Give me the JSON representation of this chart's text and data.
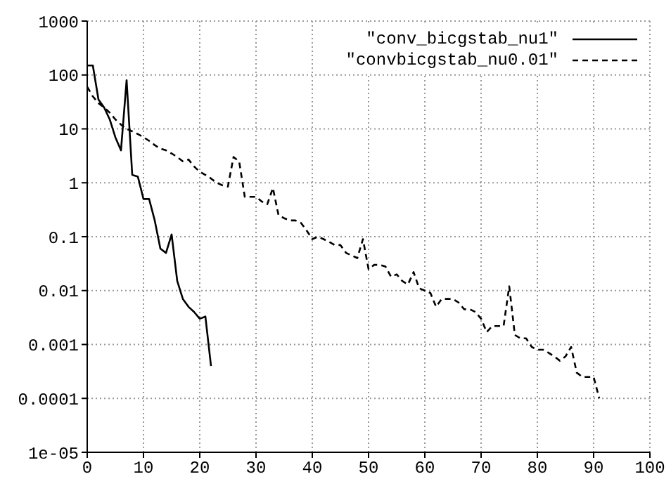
{
  "chart_data": {
    "type": "line",
    "xlim": [
      0,
      100
    ],
    "xticks": [
      0,
      10,
      20,
      30,
      40,
      50,
      60,
      70,
      80,
      90,
      100
    ],
    "ylim": [
      1e-05,
      1000
    ],
    "yticks": [
      {
        "value": 1e-05,
        "label": "1e-05"
      },
      {
        "value": 0.0001,
        "label": "0.0001"
      },
      0.001,
      0.01,
      0.1,
      1,
      10,
      100,
      1000
    ],
    "log": true,
    "grid": true,
    "legend": "top right",
    "marker": "none",
    "series": [
      {
        "name": "\"conv_bicgstab_nu1\"",
        "color": "#000000",
        "line_style": "solid",
        "x": [
          0,
          1,
          2,
          3,
          4,
          5,
          6,
          7,
          8,
          9,
          10,
          11,
          12,
          13,
          14,
          15,
          16,
          17,
          18,
          19,
          20,
          21,
          22
        ],
        "values": [
          150,
          150,
          35,
          25,
          15,
          7,
          4,
          80,
          1.4,
          1.3,
          0.5,
          0.5,
          0.2,
          0.06,
          0.05,
          0.11,
          0.015,
          0.007,
          0.005,
          0.004,
          0.003,
          0.0033,
          0.0004
        ]
      },
      {
        "name": "\"convbicgstab_nu0.01\"",
        "color": "#000000",
        "line_style": "dashed",
        "x": [
          0,
          1,
          2,
          3,
          4,
          5,
          6,
          7,
          8,
          9,
          10,
          11,
          12,
          13,
          14,
          15,
          16,
          17,
          18,
          19,
          20,
          21,
          22,
          23,
          24,
          25,
          26,
          27,
          28,
          29,
          30,
          31,
          32,
          33,
          34,
          35,
          36,
          37,
          38,
          39,
          40,
          41,
          42,
          43,
          44,
          45,
          46,
          47,
          48,
          49,
          50,
          51,
          52,
          53,
          54,
          55,
          56,
          57,
          58,
          59,
          60,
          61,
          62,
          63,
          64,
          65,
          66,
          67,
          68,
          69,
          70,
          71,
          72,
          73,
          74,
          75,
          76,
          77,
          78,
          79,
          80,
          81,
          82,
          83,
          84,
          85,
          86,
          87,
          88,
          89,
          90,
          91
        ],
        "values": [
          60,
          40,
          30,
          25,
          20,
          15,
          12,
          10,
          9,
          8,
          7,
          6,
          5,
          4.3,
          4,
          3.5,
          3,
          2.5,
          2.7,
          2,
          1.6,
          1.4,
          1.2,
          1,
          0.9,
          0.85,
          3,
          2.5,
          0.55,
          0.55,
          0.55,
          0.45,
          0.4,
          0.8,
          0.25,
          0.22,
          0.2,
          0.2,
          0.18,
          0.13,
          0.09,
          0.1,
          0.09,
          0.08,
          0.07,
          0.07,
          0.05,
          0.045,
          0.04,
          0.09,
          0.025,
          0.03,
          0.03,
          0.028,
          0.018,
          0.02,
          0.015,
          0.013,
          0.022,
          0.011,
          0.01,
          0.009,
          0.005,
          0.007,
          0.007,
          0.007,
          0.006,
          0.0045,
          0.0045,
          0.004,
          0.003,
          0.0017,
          0.0022,
          0.0022,
          0.0022,
          0.012,
          0.0015,
          0.0013,
          0.0013,
          0.0009,
          0.0008,
          0.0008,
          0.0007,
          0.0006,
          0.0005,
          0.0006,
          0.0009,
          0.0003,
          0.00025,
          0.00025,
          0.00025,
          0.0001
        ]
      }
    ]
  }
}
